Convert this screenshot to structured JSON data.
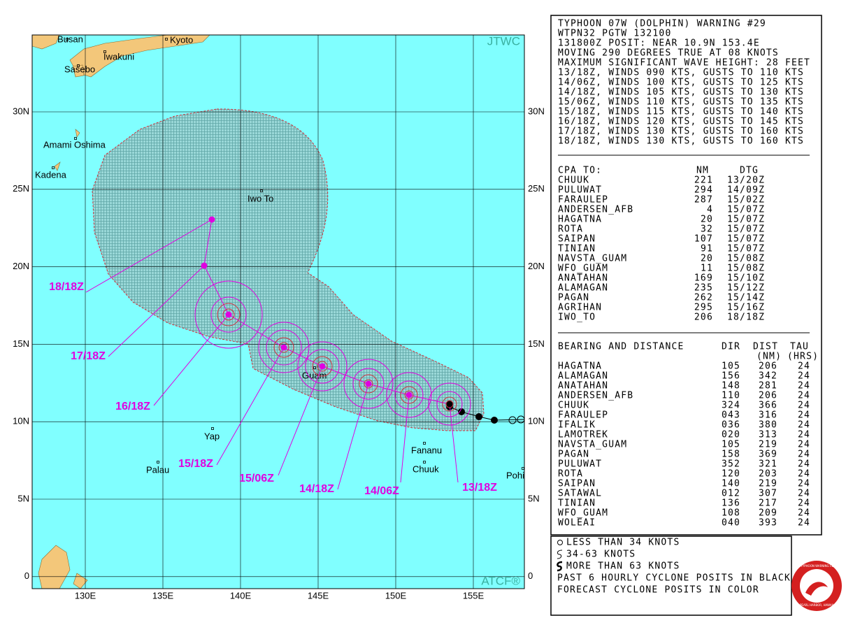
{
  "map": {
    "lat_labels": [
      "30N",
      "25N",
      "20N",
      "15N",
      "10N",
      "5N",
      "0"
    ],
    "lon_labels": [
      "130E",
      "135E",
      "140E",
      "145E",
      "150E",
      "155E"
    ],
    "watermark_top": "JTWC",
    "watermark_bottom": "ATCF®",
    "places": [
      "Busan",
      "Kyoto",
      "Iwakuni",
      "Sasebo",
      "Amami Oshima",
      "Kadena",
      "Iwo To",
      "Guam",
      "Yap",
      "Palau",
      "Fananu",
      "Chuuk",
      "Pohi"
    ],
    "forecast_labels": [
      "13/18Z",
      "14/06Z",
      "14/18Z",
      "15/06Z",
      "15/18Z",
      "16/18Z",
      "17/18Z",
      "18/18Z"
    ]
  },
  "warning": {
    "header_lines": [
      "TYPHOON 07W (DOLPHIN) WARNING #29",
      "WTPN32 PGTW 132100",
      "131800Z POSIT: NEAR 10.9N 153.4E",
      "MOVING 290 DEGREES TRUE AT 08 KNOTS",
      "MAXIMUM SIGNIFICANT WAVE HEIGHT: 28 FEET",
      "13/18Z, WINDS 090 KTS, GUSTS TO 110 KTS",
      "14/06Z, WINDS 100 KTS, GUSTS TO 125 KTS",
      "14/18Z, WINDS 105 KTS, GUSTS TO 130 KTS",
      "15/06Z, WINDS 110 KTS, GUSTS TO 135 KTS",
      "15/18Z, WINDS 115 KTS, GUSTS TO 140 KTS",
      "16/18Z, WINDS 120 KTS, GUSTS TO 145 KTS",
      "17/18Z, WINDS 130 KTS, GUSTS TO 160 KTS",
      "18/18Z, WINDS 130 KTS, GUSTS TO 160 KTS"
    ],
    "cpa": {
      "columns": [
        "CPA TO:",
        "NM",
        "DTG"
      ],
      "rows": [
        [
          "CHUUK",
          "221",
          "13/20Z"
        ],
        [
          "PULUWAT",
          "294",
          "14/09Z"
        ],
        [
          "FARAULEP",
          "287",
          "15/02Z"
        ],
        [
          "ANDERSEN_AFB",
          "4",
          "15/07Z"
        ],
        [
          "HAGATNA",
          "20",
          "15/07Z"
        ],
        [
          "ROTA",
          "32",
          "15/07Z"
        ],
        [
          "SAIPAN",
          "107",
          "15/07Z"
        ],
        [
          "TINIAN",
          "91",
          "15/07Z"
        ],
        [
          "NAVSTA_GUAM",
          "20",
          "15/08Z"
        ],
        [
          "WFO_GUAM",
          "11",
          "15/08Z"
        ],
        [
          "ANATAHAN",
          "169",
          "15/10Z"
        ],
        [
          "ALAMAGAN",
          "235",
          "15/12Z"
        ],
        [
          "PAGAN",
          "262",
          "15/14Z"
        ],
        [
          "AGRIHAN",
          "295",
          "15/16Z"
        ],
        [
          "IWO_TO",
          "206",
          "18/18Z"
        ]
      ]
    },
    "bearing": {
      "columns": [
        "BEARING AND DISTANCE",
        "DIR",
        "DIST",
        "TAU"
      ],
      "units": [
        "(NM)",
        "(HRS)"
      ],
      "rows": [
        [
          "HAGATNA",
          "105",
          "206",
          "24"
        ],
        [
          "ALAMAGAN",
          "156",
          "342",
          "24"
        ],
        [
          "ANATAHAN",
          "148",
          "281",
          "24"
        ],
        [
          "ANDERSEN_AFB",
          "110",
          "206",
          "24"
        ],
        [
          "CHUUK",
          "324",
          "366",
          "24"
        ],
        [
          "FARAULEP",
          "043",
          "316",
          "24"
        ],
        [
          "IFALIK",
          "036",
          "380",
          "24"
        ],
        [
          "LAMOTREK",
          "020",
          "313",
          "24"
        ],
        [
          "NAVSTA_GUAM",
          "105",
          "219",
          "24"
        ],
        [
          "PAGAN",
          "158",
          "369",
          "24"
        ],
        [
          "PULUWAT",
          "352",
          "321",
          "24"
        ],
        [
          "ROTA",
          "120",
          "203",
          "24"
        ],
        [
          "SAIPAN",
          "140",
          "219",
          "24"
        ],
        [
          "SATAWAL",
          "012",
          "307",
          "24"
        ],
        [
          "TINIAN",
          "136",
          "217",
          "24"
        ],
        [
          "WFO_GUAM",
          "108",
          "209",
          "24"
        ],
        [
          "WOLEAI",
          "040",
          "393",
          "24"
        ]
      ]
    }
  },
  "legend": {
    "items": [
      "LESS THAN 34 KNOTS",
      "34-63 KNOTS",
      "MORE THAN 63 KNOTS"
    ],
    "notes": [
      "PAST 6 HOURLY CYCLONE POSITS IN BLACK",
      "FORECAST CYCLONE POSITS IN COLOR"
    ]
  },
  "logo": {
    "top": "JOINT TYPHOON WARNING CENTER",
    "bottom": "PEARL HARBOR, HAWAII"
  }
}
